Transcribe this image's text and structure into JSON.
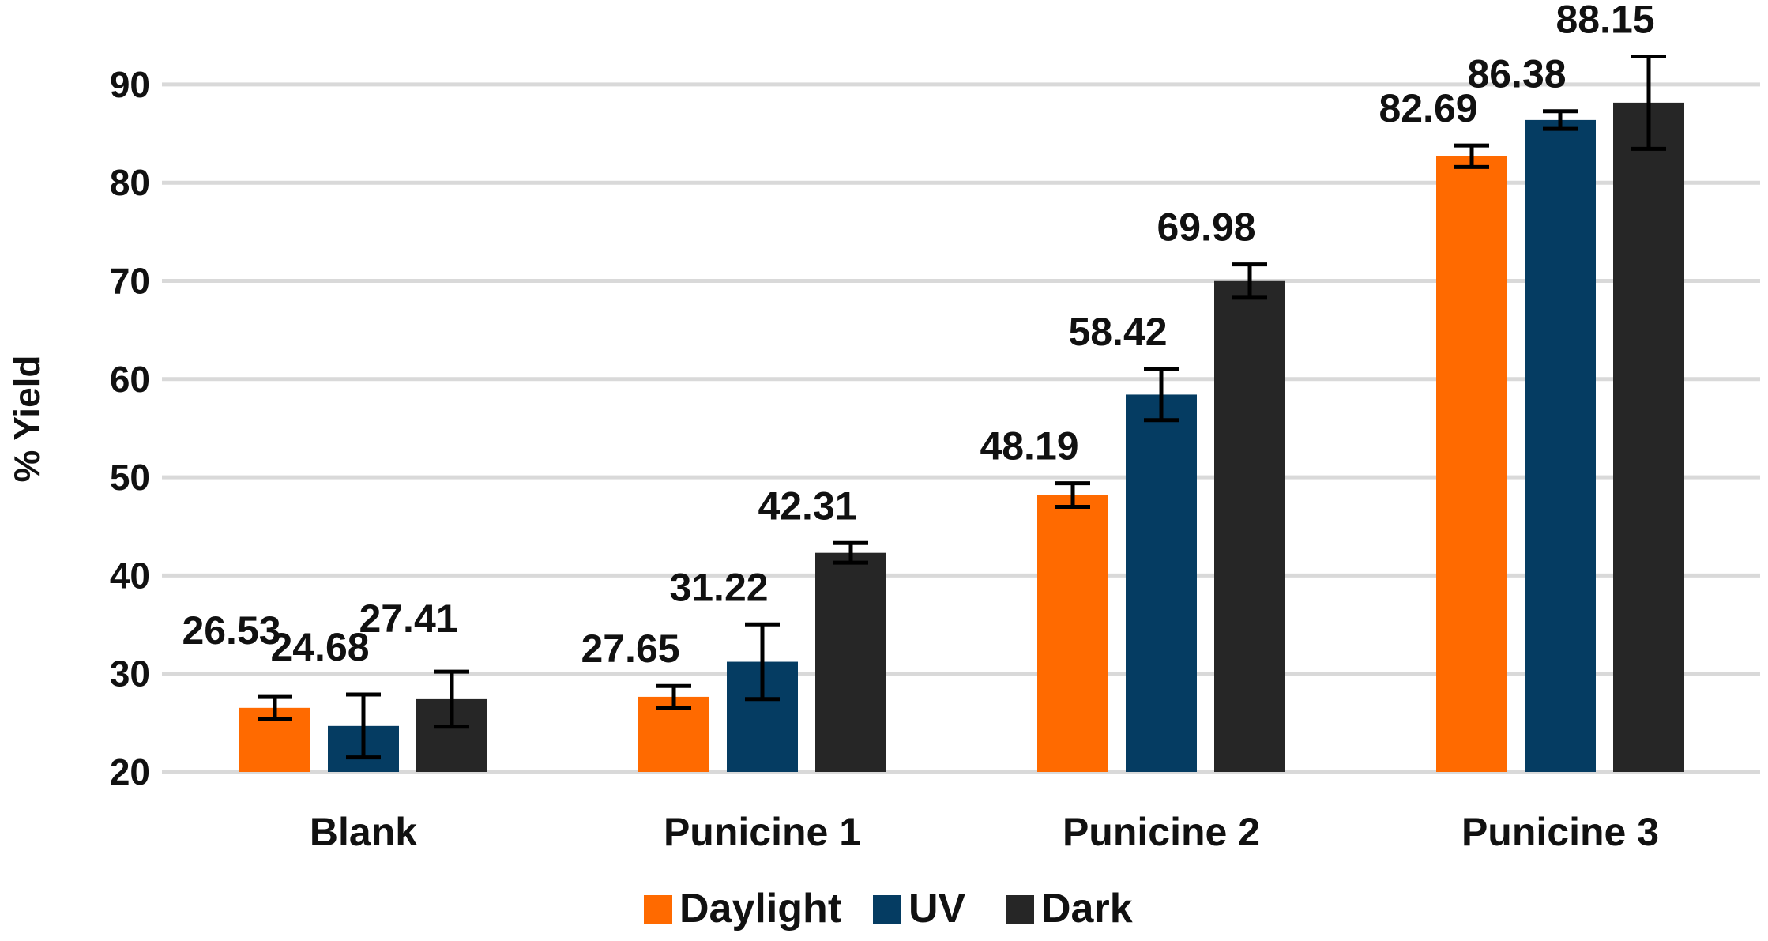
{
  "chart_data": {
    "type": "bar",
    "title": "",
    "xlabel": "",
    "ylabel": "% Yield",
    "ylim": [
      20,
      92
    ],
    "yticks": [
      "20",
      "30",
      "40",
      "50",
      "60",
      "70",
      "80",
      "90"
    ],
    "grid": true,
    "legend_position": "bottom",
    "categories": [
      "Blank",
      "Punicine 1",
      "Punicine 2",
      "Punicine 3"
    ],
    "series": [
      {
        "name": "Daylight",
        "color": "#ff6a00",
        "values": [
          26.53,
          27.65,
          48.19,
          82.69
        ],
        "labels": [
          "26.53",
          "27.65",
          "48.19",
          "82.69"
        ],
        "errors": [
          1.1,
          1.1,
          1.2,
          1.1
        ]
      },
      {
        "name": "UV",
        "color": "#053c62",
        "values": [
          24.68,
          31.22,
          58.42,
          86.38
        ],
        "labels": [
          "24.68",
          "31.22",
          "58.42",
          "86.38"
        ],
        "errors": [
          3.2,
          3.8,
          2.6,
          0.9
        ]
      },
      {
        "name": "Dark",
        "color": "#262626",
        "values": [
          27.41,
          42.31,
          69.98,
          88.15
        ],
        "labels": [
          "27.41",
          "42.31",
          "69.98",
          "88.15"
        ],
        "errors": [
          2.8,
          1.0,
          1.7,
          4.7
        ]
      }
    ]
  }
}
